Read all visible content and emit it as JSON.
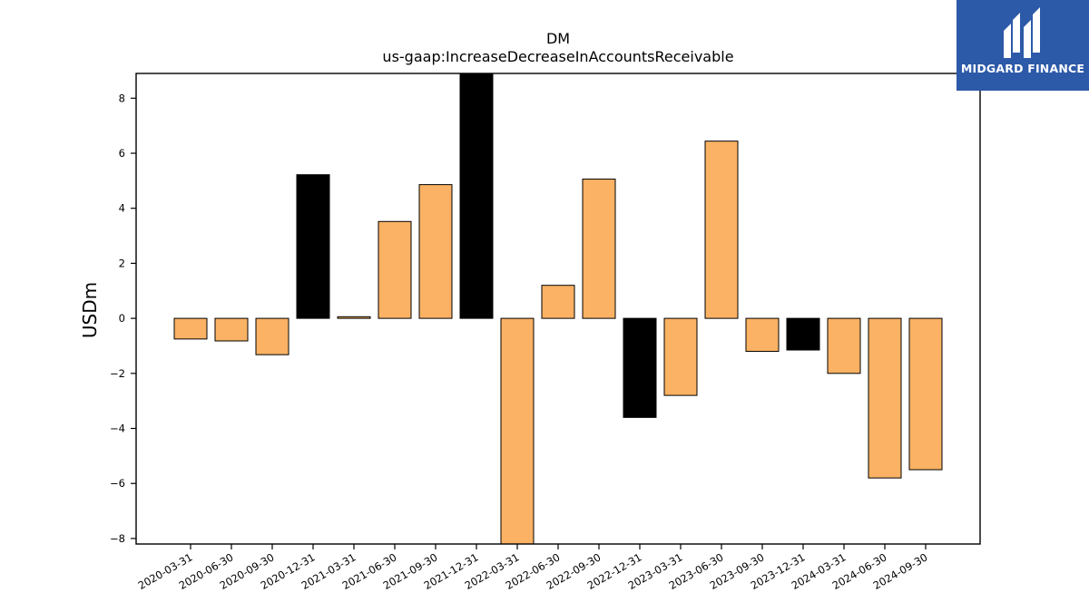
{
  "brand": {
    "name": "MIDGARD FINANCE",
    "bg_color": "#2c59a8",
    "icon": "midgard-logo-icon"
  },
  "chart_data": {
    "type": "bar",
    "title": "DM",
    "subtitle": "us-gaap:IncreaseDecreaseInAccountsReceivable",
    "xlabel": "",
    "ylabel": "USDm",
    "ylim": [
      -8.2,
      8.9
    ],
    "yticks": [
      -8,
      -6,
      -4,
      -2,
      0,
      2,
      4,
      6,
      8
    ],
    "ytick_labels": [
      "−8",
      "−6",
      "−4",
      "−2",
      "0",
      "2",
      "4",
      "6",
      "8"
    ],
    "grid": false,
    "categories": [
      "2020-03-31",
      "2020-06-30",
      "2020-09-30",
      "2020-12-31",
      "2021-03-31",
      "2021-06-30",
      "2021-09-30",
      "2021-12-31",
      "2022-03-31",
      "2022-06-30",
      "2022-09-30",
      "2022-12-31",
      "2023-03-31",
      "2023-06-30",
      "2023-09-30",
      "2023-12-31",
      "2024-03-31",
      "2024-06-30",
      "2024-09-30"
    ],
    "values": [
      -0.75,
      -0.82,
      -1.32,
      5.22,
      0.06,
      3.52,
      4.86,
      9.3,
      -8.5,
      1.2,
      5.06,
      -3.6,
      -2.8,
      6.44,
      -1.2,
      -1.15,
      -2.0,
      -5.8,
      -5.5
    ],
    "highlight": [
      false,
      false,
      false,
      true,
      false,
      false,
      false,
      true,
      false,
      false,
      false,
      true,
      false,
      false,
      false,
      true,
      false,
      false,
      false
    ],
    "colors": {
      "bar": "#fbb264",
      "highlight": "#000000",
      "edge": "#000000",
      "axis": "#000000",
      "text": "#000000"
    }
  }
}
